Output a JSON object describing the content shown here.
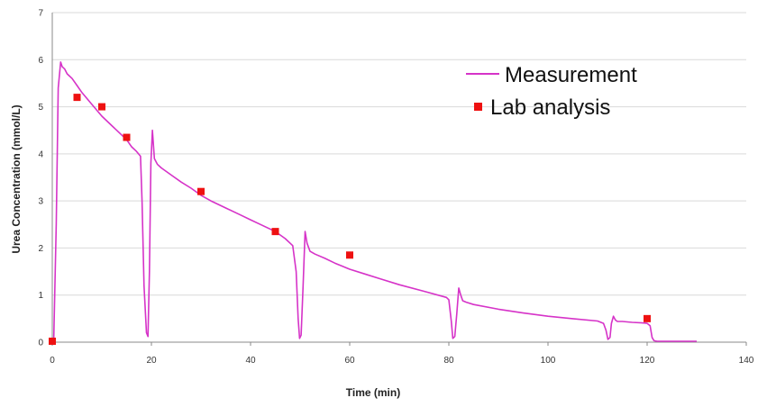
{
  "chart_data": {
    "type": "line",
    "title": "",
    "xlabel": "Time (min)",
    "ylabel": "Urea   Concentration (mmol/L)",
    "xlim": [
      0,
      140
    ],
    "ylim": [
      0,
      7
    ],
    "x_ticks": [
      0,
      20,
      40,
      60,
      80,
      100,
      120,
      140
    ],
    "y_ticks": [
      0,
      1,
      2,
      3,
      4,
      5,
      6,
      7
    ],
    "grid": "horizontal",
    "legend_position": "top-right",
    "series": [
      {
        "name": "Measurement",
        "kind": "line",
        "color": "#d633c8",
        "x": [
          0,
          0.3,
          0.8,
          1.2,
          1.7,
          2.0,
          2.5,
          3,
          4,
          5,
          6,
          8,
          10,
          12,
          14,
          15,
          16,
          17,
          17.8,
          18.1,
          18.5,
          19.0,
          19.3,
          19.6,
          19.9,
          20.2,
          20.6,
          21.2,
          22,
          24,
          26,
          28,
          30,
          32,
          35,
          38,
          40,
          42,
          45,
          47,
          48.5,
          49.2,
          49.6,
          49.9,
          50.2,
          50.6,
          51.0,
          51.4,
          52.0,
          53,
          55,
          57,
          60,
          63,
          66,
          70,
          75,
          79.5,
          80.0,
          80.5,
          80.8,
          81.2,
          81.6,
          82.0,
          82.4,
          82.8,
          83.5,
          85,
          90,
          95,
          100,
          105,
          110,
          111.2,
          111.7,
          112.1,
          112.5,
          112.8,
          113.2,
          113.6,
          114,
          115,
          117,
          119,
          120,
          120.6,
          121,
          121.4,
          122,
          126,
          130
        ],
        "values": [
          0.02,
          0.02,
          2.5,
          5.4,
          5.95,
          5.85,
          5.8,
          5.7,
          5.6,
          5.45,
          5.3,
          5.05,
          4.8,
          4.6,
          4.4,
          4.3,
          4.15,
          4.05,
          3.95,
          3.0,
          1.2,
          0.2,
          0.12,
          1.5,
          3.8,
          4.5,
          3.9,
          3.78,
          3.7,
          3.55,
          3.4,
          3.27,
          3.12,
          3.0,
          2.85,
          2.7,
          2.6,
          2.5,
          2.35,
          2.2,
          2.05,
          1.5,
          0.5,
          0.08,
          0.15,
          1.2,
          2.35,
          2.1,
          1.93,
          1.87,
          1.78,
          1.68,
          1.55,
          1.45,
          1.35,
          1.22,
          1.08,
          0.95,
          0.9,
          0.45,
          0.08,
          0.12,
          0.6,
          1.15,
          1.0,
          0.88,
          0.85,
          0.8,
          0.7,
          0.62,
          0.55,
          0.5,
          0.45,
          0.4,
          0.25,
          0.06,
          0.1,
          0.4,
          0.55,
          0.47,
          0.44,
          0.44,
          0.42,
          0.41,
          0.4,
          0.35,
          0.1,
          0.03,
          0.02,
          0.02,
          0.02
        ]
      },
      {
        "name": "Lab analysis",
        "kind": "scatter",
        "color": "#ee1111",
        "x": [
          0,
          5,
          10,
          15,
          30,
          45,
          60,
          120
        ],
        "values": [
          0.02,
          5.2,
          5.0,
          4.35,
          3.2,
          2.35,
          1.85,
          0.5
        ]
      }
    ]
  }
}
